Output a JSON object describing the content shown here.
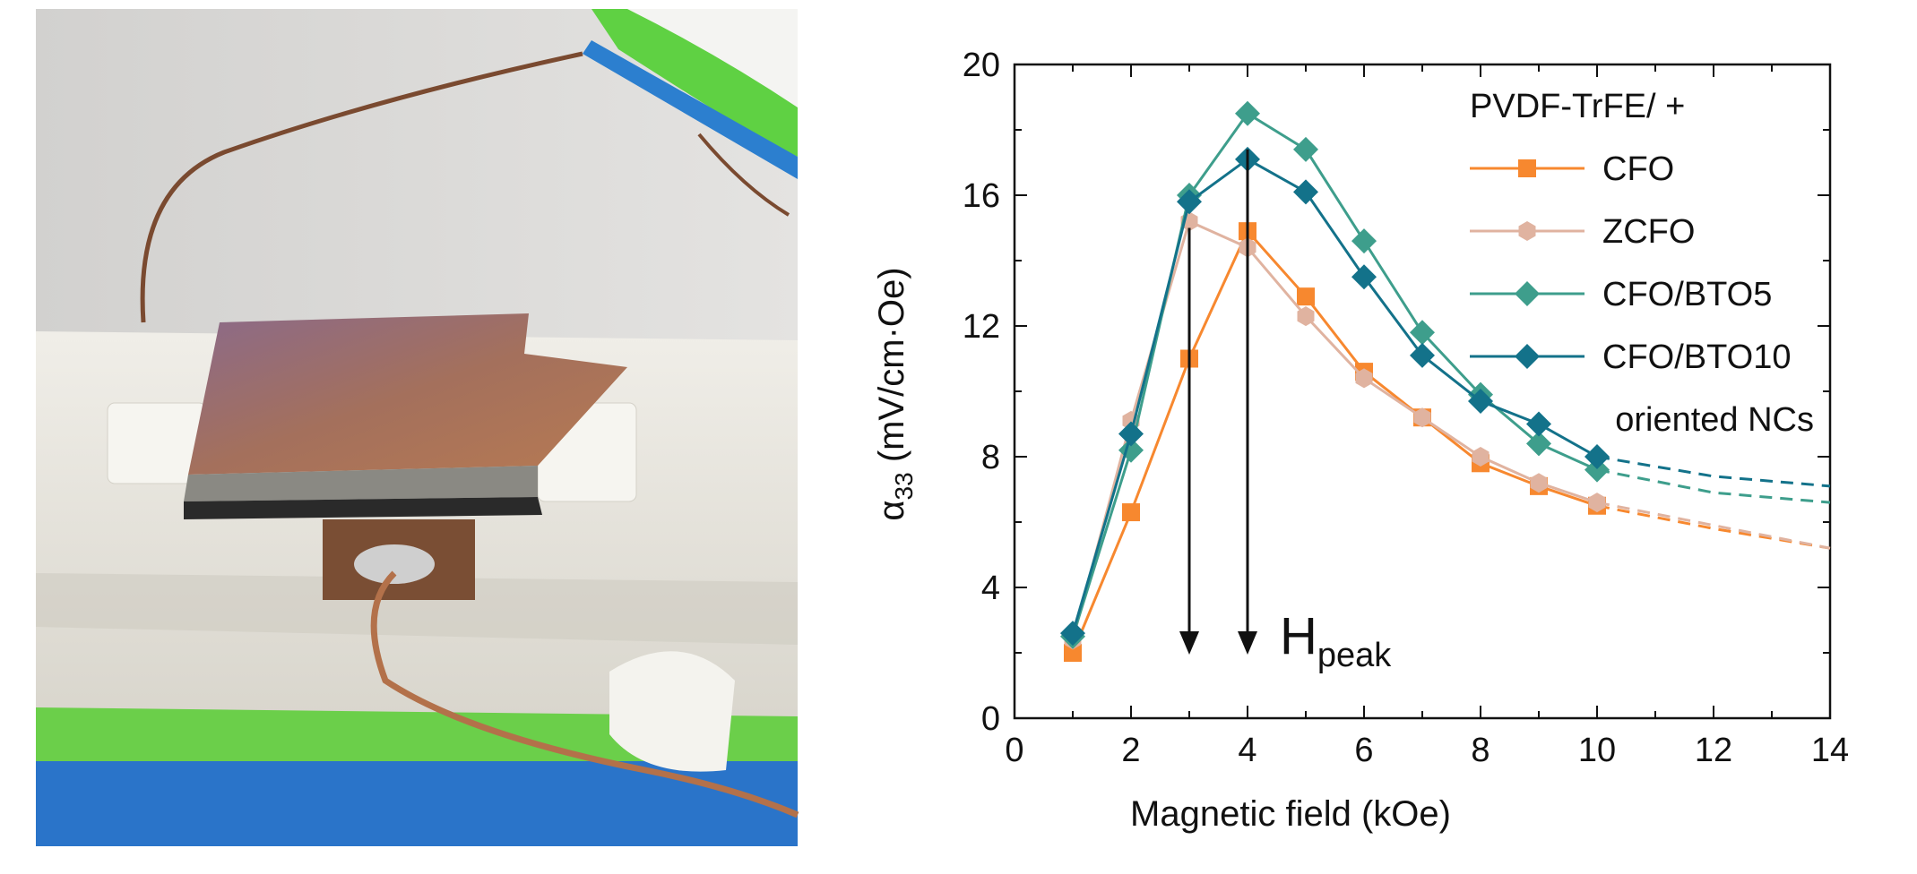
{
  "figure": {
    "photo_description": "magnetoelectric sample: copper electrode on a 3D-printed holder with copper wire",
    "colors": {
      "holder": "#e9e6df",
      "copper": "#b3714a",
      "green_base": "#6bcf4a",
      "blue_tape": "#2a74c9"
    }
  },
  "chart_data": {
    "type": "line",
    "xlabel": "Magnetic field (kOe)",
    "ylabel_main": "α",
    "ylabel_sub": "33",
    "ylabel_rest": " (mV/cm·Oe)",
    "xlim": [
      0,
      14
    ],
    "ylim": [
      0,
      20
    ],
    "xticks": [
      0,
      2,
      4,
      6,
      8,
      10,
      12,
      14
    ],
    "yticks": [
      0,
      4,
      8,
      12,
      16,
      20
    ],
    "grid": false,
    "legend_title": "PVDF-TrFE/ +",
    "legend_footer": "oriented NCs",
    "legend_position": "top-right",
    "series": [
      {
        "name": "CFO",
        "color": "#f7882f",
        "marker": "square",
        "x": [
          1,
          2,
          3,
          4,
          5,
          6,
          7,
          8,
          9,
          10
        ],
        "y": [
          2.0,
          6.3,
          11.0,
          14.9,
          12.9,
          10.6,
          9.2,
          7.8,
          7.1,
          6.5
        ],
        "extrap": [
          [
            10,
            6.5
          ],
          [
            12,
            5.8
          ],
          [
            14,
            5.2
          ]
        ]
      },
      {
        "name": "ZCFO",
        "color": "#e0b3a0",
        "marker": "hexagon",
        "x": [
          1,
          2,
          3,
          4,
          5,
          6,
          7,
          8,
          9,
          10
        ],
        "y": [
          2.4,
          9.1,
          15.2,
          14.4,
          12.3,
          10.4,
          9.2,
          8.0,
          7.2,
          6.6
        ],
        "extrap": [
          [
            10,
            6.6
          ],
          [
            12,
            5.9
          ],
          [
            14,
            5.2
          ]
        ]
      },
      {
        "name": "CFO/BTO5",
        "color": "#3e9e8c",
        "marker": "diamond",
        "x": [
          1,
          2,
          3,
          4,
          5,
          6,
          7,
          8,
          9,
          10
        ],
        "y": [
          2.5,
          8.2,
          16.0,
          18.5,
          17.4,
          14.6,
          11.8,
          9.9,
          8.4,
          7.6
        ],
        "extrap": [
          [
            10,
            7.6
          ],
          [
            12,
            6.9
          ],
          [
            14,
            6.6
          ]
        ]
      },
      {
        "name": "CFO/BTO10",
        "color": "#13728a",
        "marker": "diamond",
        "x": [
          1,
          2,
          3,
          4,
          5,
          6,
          7,
          8,
          9,
          10
        ],
        "y": [
          2.6,
          8.7,
          15.8,
          17.1,
          16.1,
          13.5,
          11.1,
          9.7,
          9.0,
          8.0
        ],
        "extrap": [
          [
            10,
            8.0
          ],
          [
            12,
            7.4
          ],
          [
            14,
            7.1
          ]
        ]
      }
    ],
    "annotations": [
      {
        "label_main": "H",
        "label_sub": "peak"
      }
    ],
    "arrows": [
      {
        "x": 3,
        "from_y": 15.0,
        "to_y": 2.0
      },
      {
        "x": 4,
        "from_y": 17.4,
        "to_y": 2.0
      }
    ]
  }
}
